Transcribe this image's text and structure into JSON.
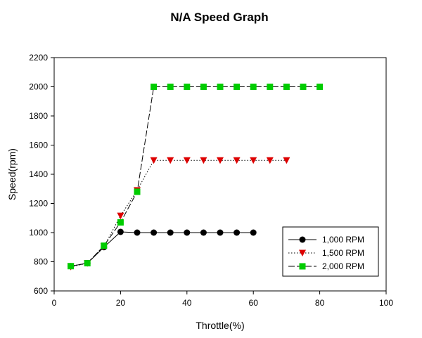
{
  "chart_data": {
    "type": "line",
    "title": "N/A Speed Graph",
    "xlabel": "Throttle(%)",
    "ylabel": "Speed(rpm)",
    "xlim": [
      0,
      100
    ],
    "ylim": [
      600,
      2200
    ],
    "xticks": [
      0,
      20,
      40,
      60,
      80,
      100
    ],
    "yticks": [
      600,
      800,
      1000,
      1200,
      1400,
      1600,
      1800,
      2000,
      2200
    ],
    "grid": false,
    "legend_position": "bottom-right",
    "series": [
      {
        "name": "1,000 RPM",
        "color": "#000000",
        "marker": "circle",
        "line_style": "solid",
        "x": [
          5,
          10,
          15,
          20,
          25,
          30,
          35,
          40,
          45,
          50,
          55,
          60
        ],
        "y": [
          770,
          790,
          900,
          1005,
          1000,
          1000,
          1000,
          1000,
          1000,
          1000,
          1000,
          1000
        ]
      },
      {
        "name": "1,500 RPM",
        "color": "#dd0000",
        "marker": "triangle-down",
        "line_style": "dotted",
        "x": [
          5,
          10,
          15,
          20,
          25,
          30,
          35,
          40,
          45,
          50,
          55,
          60,
          65,
          70
        ],
        "y": [
          765,
          790,
          905,
          1115,
          1290,
          1495,
          1495,
          1495,
          1495,
          1495,
          1495,
          1495,
          1495,
          1495
        ]
      },
      {
        "name": "2,000 RPM",
        "color": "#00cc00",
        "marker": "square",
        "line_style": "dashed",
        "x": [
          5,
          10,
          15,
          20,
          25,
          30,
          35,
          40,
          45,
          50,
          55,
          60,
          65,
          70,
          75,
          80
        ],
        "y": [
          770,
          790,
          910,
          1070,
          1280,
          2000,
          2000,
          2000,
          2000,
          2000,
          2000,
          2000,
          2000,
          2000,
          2000,
          2000
        ]
      }
    ]
  }
}
